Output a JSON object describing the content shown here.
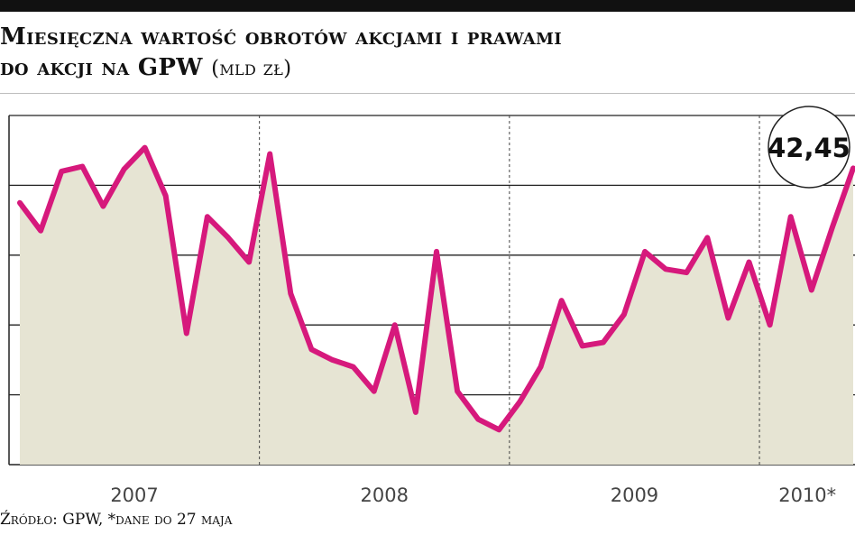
{
  "header": {
    "title_line1": "Miesięczna wartość obrotów akcjami i prawami",
    "title_line2": "do akcji na GPW",
    "unit": "(mld zł)"
  },
  "chart_data": {
    "type": "area",
    "title": "Miesięczna wartość obrotów akcjami i prawami do akcji na GPW",
    "unit": "mld zł",
    "year_labels": [
      "2007",
      "2008",
      "2009",
      "2010*"
    ],
    "grid": "horizontal solid lines, dashed vertical year separators",
    "y_axis_tick_labels": "not visible",
    "x": [
      "2007-01",
      "2007-02",
      "2007-03",
      "2007-04",
      "2007-05",
      "2007-06",
      "2007-07",
      "2007-08",
      "2007-09",
      "2007-10",
      "2007-11",
      "2007-12",
      "2008-01",
      "2008-02",
      "2008-03",
      "2008-04",
      "2008-05",
      "2008-06",
      "2008-07",
      "2008-08",
      "2008-09",
      "2008-10",
      "2008-11",
      "2008-12",
      "2009-01",
      "2009-02",
      "2009-03",
      "2009-04",
      "2009-05",
      "2009-06",
      "2009-07",
      "2009-08",
      "2009-09",
      "2009-10",
      "2009-11",
      "2009-12",
      "2010-01",
      "2010-02",
      "2010-03",
      "2010-04",
      "2010-05"
    ],
    "values": [
      37.5,
      33.5,
      42.0,
      42.7,
      37.0,
      42.3,
      45.4,
      38.5,
      18.8,
      35.5,
      32.5,
      29.0,
      44.5,
      24.5,
      16.5,
      15.0,
      14.0,
      10.5,
      20.0,
      7.5,
      30.5,
      10.5,
      6.5,
      5.0,
      9.0,
      14.0,
      23.5,
      17.0,
      17.5,
      21.5,
      30.5,
      28.0,
      27.5,
      32.5,
      21.0,
      29.0,
      20.0,
      35.5,
      25.0,
      34.0,
      42.45
    ],
    "highlight": {
      "label": "42,45",
      "month": "2010-05",
      "value": 42.45
    },
    "line_color": "#d6197c",
    "fill_color": "#e6e4d3"
  },
  "footer": {
    "source": "Źródło: GPW, *dane do 27 maja"
  }
}
